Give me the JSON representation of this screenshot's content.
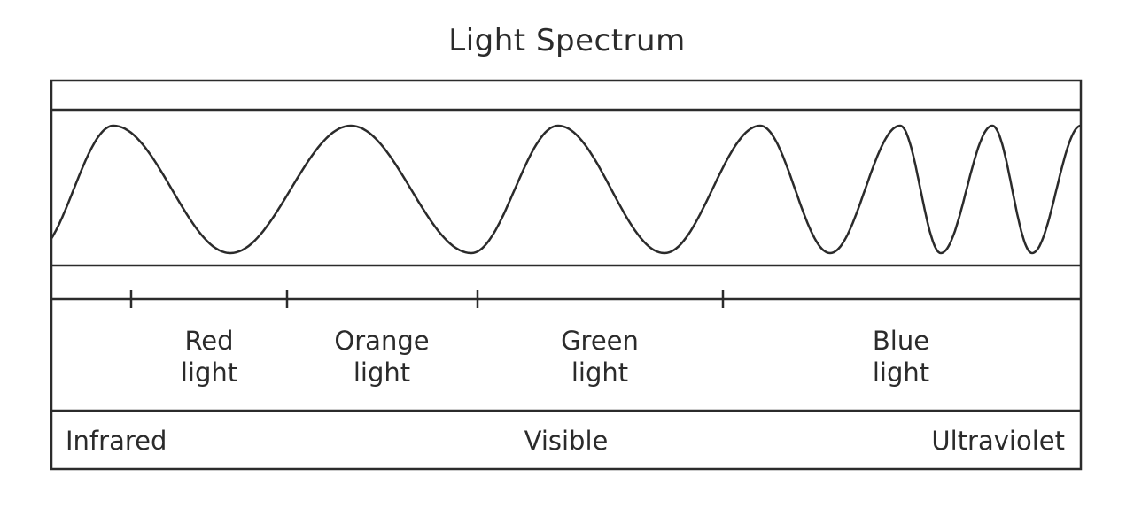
{
  "title": "Light Spectrum",
  "bands": [
    {
      "line1": "Red",
      "line2": "light"
    },
    {
      "line1": "Orange",
      "line2": "light"
    },
    {
      "line1": "Green",
      "line2": "light"
    },
    {
      "line1": "Blue",
      "line2": "light"
    }
  ],
  "regions": {
    "left": "Infrared",
    "center": "Visible",
    "right": "Ultraviolet"
  },
  "colors": {
    "stroke": "#2b2b2b",
    "background": "#ffffff"
  }
}
